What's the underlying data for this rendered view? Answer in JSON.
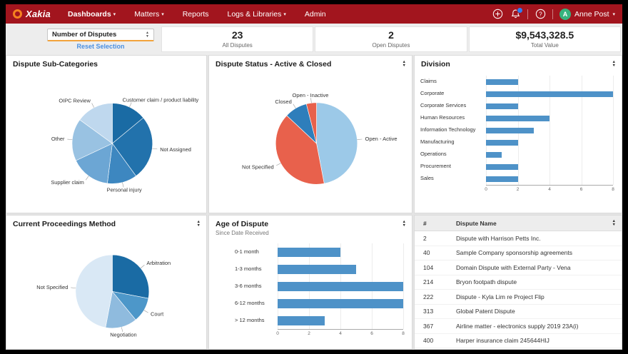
{
  "colors": {
    "navbar_red": "#A2151E",
    "logo_orange": "#F58220",
    "bar_blue": "#4E92C8",
    "link_blue": "#4A90E2",
    "badge_blue": "#2D7FF2",
    "avatar_green": "#36B37E",
    "select_underline_orange": "#F2A33C"
  },
  "icons": {
    "caret": "▾",
    "sort_up": "▲",
    "sort_down": "▼"
  },
  "nav": {
    "brand": "Xakia",
    "items": [
      {
        "label": "Dashboards",
        "caret": true,
        "active": true
      },
      {
        "label": "Matters",
        "caret": true,
        "active": false
      },
      {
        "label": "Reports",
        "caret": false,
        "active": false
      },
      {
        "label": "Logs & Libraries",
        "caret": true,
        "active": false
      },
      {
        "label": "Admin",
        "caret": false,
        "active": false
      }
    ],
    "user": {
      "initial": "A",
      "name": "Anne Post"
    }
  },
  "filter_bar": {
    "metric_select": "Number of Disputes",
    "reset_label": "Reset Selection",
    "kpis": [
      {
        "value": "23",
        "label": "All Disputes"
      },
      {
        "value": "2",
        "label": "Open Disputes"
      },
      {
        "value": "$9,543,328.5",
        "label": "Total Value"
      }
    ]
  },
  "panels": {
    "sub_categories": {
      "title": "Dispute Sub-Categories"
    },
    "status": {
      "title": "Dispute Status - Active & Closed"
    },
    "division": {
      "title": "Division"
    },
    "proceedings": {
      "title": "Current Proceedings Method"
    },
    "age": {
      "title": "Age of Dispute",
      "subtitle": "Since Date Received"
    }
  },
  "chart_data": [
    {
      "type": "pie",
      "title": "Dispute Sub-Categories",
      "slices": [
        {
          "label": "Customer claim / product liability",
          "value": 14,
          "color": "#1A6BA4"
        },
        {
          "label": "Not Assigned",
          "value": 26,
          "color": "#2272AC"
        },
        {
          "label": "Personal injury",
          "value": 12,
          "color": "#3D87C0"
        },
        {
          "label": "Supplier claim",
          "value": 16,
          "color": "#6CA6D4"
        },
        {
          "label": "Other",
          "value": 17,
          "color": "#99C2E2"
        },
        {
          "label": "OIPC Review",
          "value": 15,
          "color": "#BFD8EE"
        }
      ]
    },
    {
      "type": "pie",
      "title": "Dispute Status - Active & Closed",
      "slices": [
        {
          "label": "Open - Active",
          "value": 47,
          "color": "#9CC9E8"
        },
        {
          "label": "Not Specified",
          "value": 40,
          "color": "#E8614C"
        },
        {
          "label": "Closed",
          "value": 9,
          "color": "#2E7EBB"
        },
        {
          "label": "Open - Inactive",
          "value": 4,
          "color": "#E8614C"
        }
      ]
    },
    {
      "type": "bar",
      "title": "Division",
      "categories": [
        "Claims",
        "Corporate",
        "Corporate Services",
        "Human Resources",
        "Information Technology",
        "Manufacturing",
        "Operations",
        "Procurement",
        "Sales"
      ],
      "values": [
        2,
        8,
        2,
        4,
        3,
        2,
        1,
        2,
        2
      ],
      "color": "#4E92C8",
      "xlim": [
        0,
        8
      ],
      "ticks": [
        0,
        2,
        4,
        6,
        8
      ]
    },
    {
      "type": "pie",
      "title": "Current Proceedings Method",
      "slices": [
        {
          "label": "Arbitration",
          "value": 28,
          "color": "#1A6BA4"
        },
        {
          "label": "Court",
          "value": 11,
          "color": "#4D97C9"
        },
        {
          "label": "Negotiation",
          "value": 14,
          "color": "#8FBBDE"
        },
        {
          "label": "Not Specified",
          "value": 47,
          "color": "#D9E8F5"
        }
      ]
    },
    {
      "type": "bar",
      "title": "Age of Dispute",
      "subtitle": "Since Date Received",
      "categories": [
        "0-1 month",
        "1-3 months",
        "3-6 months",
        "6-12 months",
        "> 12 months"
      ],
      "values": [
        4,
        5,
        8,
        8,
        3
      ],
      "color": "#4E92C8",
      "xlim": [
        0,
        8
      ],
      "ticks": [
        0,
        2,
        4,
        6,
        8
      ]
    },
    {
      "type": "table",
      "headers": [
        "#",
        "Dispute Name"
      ],
      "rows": [
        [
          "2",
          "Dispute with Harrison Petts Inc."
        ],
        [
          "40",
          "Sample Company sponsorship agreements"
        ],
        [
          "104",
          "Domain Dispute with External Party - Vena"
        ],
        [
          "214",
          "Bryon footpath dispute"
        ],
        [
          "222",
          "Dispute - Kyla Lim re Project Flip"
        ],
        [
          "313",
          "Global Patent Dispute"
        ],
        [
          "367",
          "Airline matter - electronics supply 2019 23A(i)"
        ],
        [
          "400",
          "Harper insurance claim 245644HIJ"
        ]
      ]
    }
  ]
}
